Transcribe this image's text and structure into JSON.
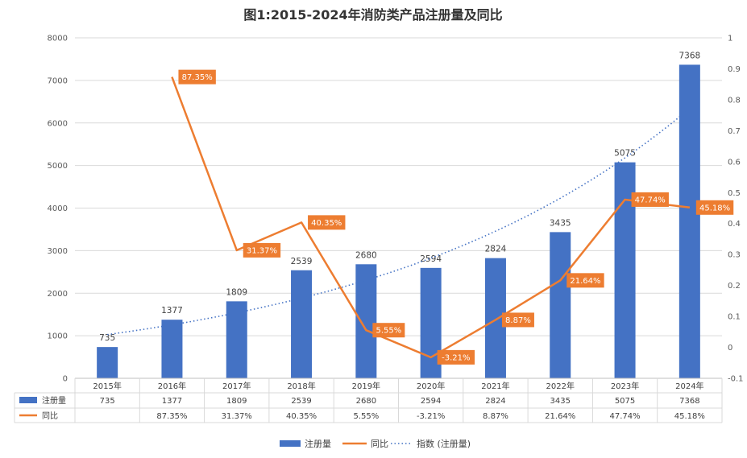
{
  "chart_data": {
    "type": "bar",
    "title": "图1:2015-2024年消防类产品注册量及同比",
    "categories": [
      "2015年",
      "2016年",
      "2017年",
      "2018年",
      "2019年",
      "2020年",
      "2021年",
      "2022年",
      "2023年",
      "2024年"
    ],
    "series": [
      {
        "name": "注册量",
        "type": "bar",
        "axis": "left",
        "color": "#4472C4",
        "values": [
          735,
          1377,
          1809,
          2539,
          2680,
          2594,
          2824,
          3435,
          5075,
          7368
        ],
        "labels": [
          "735",
          "1377",
          "1809",
          "2539",
          "2680",
          "2594",
          "2824",
          "3435",
          "5075",
          "7368"
        ]
      },
      {
        "name": "同比",
        "type": "line",
        "axis": "right",
        "color": "#ED7D31",
        "values": [
          null,
          0.8735,
          0.3137,
          0.4035,
          0.0555,
          -0.0321,
          0.0887,
          0.2164,
          0.4774,
          0.4518
        ],
        "labels": [
          "",
          "87.35%",
          "31.37%",
          "40.35%",
          "5.55%",
          "-3.21%",
          "8.87%",
          "21.64%",
          "47.74%",
          "45.18%"
        ]
      },
      {
        "name": "指数 (注册量)",
        "type": "trendline",
        "style": "dotted",
        "axis": "left",
        "color": "#4472C4"
      }
    ],
    "y_left": {
      "min": 0,
      "max": 8000,
      "step": 1000,
      "ticks": [
        "0",
        "1000",
        "2000",
        "3000",
        "4000",
        "5000",
        "6000",
        "7000",
        "8000"
      ]
    },
    "y_right": {
      "min": -0.1,
      "max": 1,
      "step": 0.1,
      "ticks": [
        "-0.1",
        "0",
        "0.1",
        "0.2",
        "0.3",
        "0.4",
        "0.5",
        "0.6",
        "0.7",
        "0.8",
        "0.9",
        "1"
      ]
    },
    "legend": [
      "注册量",
      "同比",
      "指数 (注册量)"
    ],
    "legend_position": "bottom",
    "grid": true
  }
}
